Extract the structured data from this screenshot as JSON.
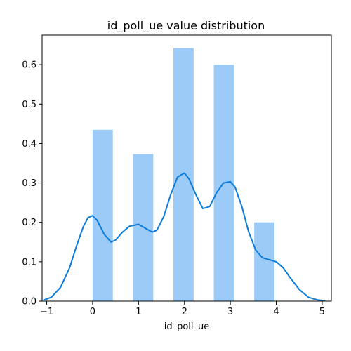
{
  "chart_data": {
    "type": "bar",
    "title": "id_poll_ue value distribution",
    "xlabel": "id_poll_ue",
    "ylabel": "",
    "xlim": [
      -1.1,
      5.2
    ],
    "ylim": [
      0,
      0.675
    ],
    "xticks": [
      -1,
      0,
      1,
      2,
      3,
      4,
      5
    ],
    "xtick_labels": [
      "−1",
      "0",
      "1",
      "2",
      "3",
      "4",
      "5"
    ],
    "yticks": [
      0,
      0.1,
      0.2,
      0.3,
      0.4,
      0.5,
      0.6
    ],
    "ytick_labels": [
      "0.0",
      "0.1",
      "0.2",
      "0.3",
      "0.4",
      "0.5",
      "0.6"
    ],
    "grid": false,
    "bar_color": "#9ccbf7",
    "line_color": "#0b7bdc",
    "bars": [
      {
        "x0": 0.0,
        "x1": 0.44,
        "value": 0.435
      },
      {
        "x0": 0.88,
        "x1": 1.32,
        "value": 0.373
      },
      {
        "x0": 1.76,
        "x1": 2.2,
        "value": 0.642
      },
      {
        "x0": 2.64,
        "x1": 3.08,
        "value": 0.6
      },
      {
        "x0": 3.52,
        "x1": 3.96,
        "value": 0.2
      }
    ],
    "kde": {
      "name": "",
      "x": [
        -1.06,
        -0.9,
        -0.7,
        -0.5,
        -0.35,
        -0.2,
        -0.1,
        0.0,
        0.1,
        0.25,
        0.4,
        0.5,
        0.65,
        0.8,
        1.0,
        1.15,
        1.3,
        1.4,
        1.55,
        1.7,
        1.85,
        2.0,
        2.1,
        2.25,
        2.4,
        2.55,
        2.7,
        2.85,
        3.0,
        3.1,
        3.25,
        3.4,
        3.55,
        3.7,
        3.85,
        4.0,
        4.15,
        4.3,
        4.5,
        4.7,
        4.9,
        5.05
      ],
      "y": [
        0.003,
        0.01,
        0.035,
        0.085,
        0.14,
        0.19,
        0.212,
        0.217,
        0.205,
        0.17,
        0.15,
        0.155,
        0.175,
        0.19,
        0.195,
        0.185,
        0.175,
        0.18,
        0.215,
        0.27,
        0.315,
        0.325,
        0.31,
        0.27,
        0.235,
        0.24,
        0.275,
        0.3,
        0.303,
        0.29,
        0.24,
        0.175,
        0.13,
        0.11,
        0.105,
        0.1,
        0.085,
        0.06,
        0.03,
        0.01,
        0.003,
        0.001
      ]
    }
  }
}
